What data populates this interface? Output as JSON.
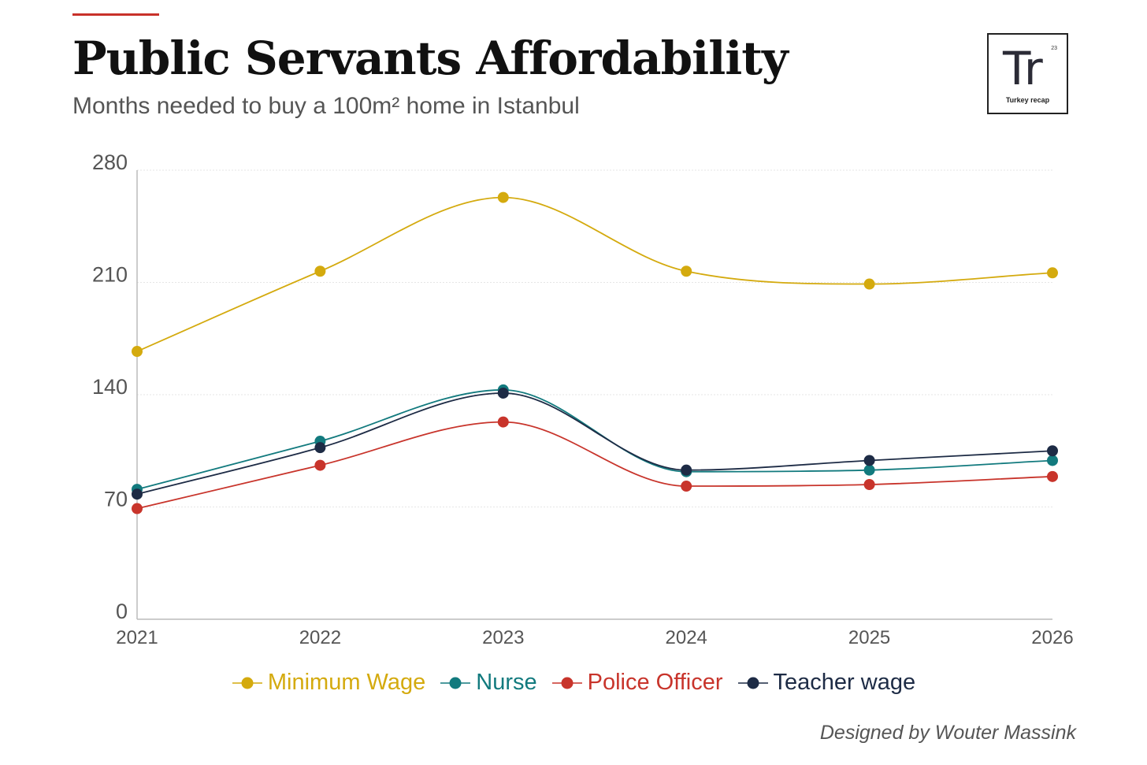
{
  "header": {
    "title": "Public Servants Affordability",
    "subtitle": "Months needed to buy a 100m² home in Istanbul"
  },
  "logo": {
    "symbol": "Tr",
    "number": "23",
    "name": "Turkey recap"
  },
  "footer": {
    "credit": "Designed by Wouter Massink"
  },
  "colors": {
    "accent": "#c8312a",
    "minimum_wage": "#d4aa0e",
    "nurse": "#127a7e",
    "police_officer": "#c8342b",
    "teacher_wage": "#1d2b45"
  },
  "chart_data": {
    "type": "line",
    "title": "Public Servants Affordability",
    "subtitle": "Months needed to buy a 100m² home in Istanbul",
    "xlabel": "",
    "ylabel": "",
    "categories": [
      "2021",
      "2022",
      "2023",
      "2024",
      "2025",
      "2026"
    ],
    "yticks": [
      "0",
      "70",
      "140",
      "210",
      "280"
    ],
    "ylim": [
      0,
      280
    ],
    "grid": true,
    "legend": "bottom-center",
    "series": [
      {
        "name": "Minimum Wage",
        "color": "#d4aa0e",
        "values": [
          167,
          217,
          263,
          217,
          209,
          216
        ]
      },
      {
        "name": "Nurse",
        "color": "#127a7e",
        "values": [
          81,
          111,
          143,
          92,
          93,
          99
        ]
      },
      {
        "name": "Police Officer",
        "color": "#c8342b",
        "values": [
          69,
          96,
          123,
          83,
          84,
          89
        ]
      },
      {
        "name": "Teacher wage",
        "color": "#1d2b45",
        "values": [
          78,
          107,
          141,
          93,
          99,
          105
        ]
      }
    ]
  }
}
